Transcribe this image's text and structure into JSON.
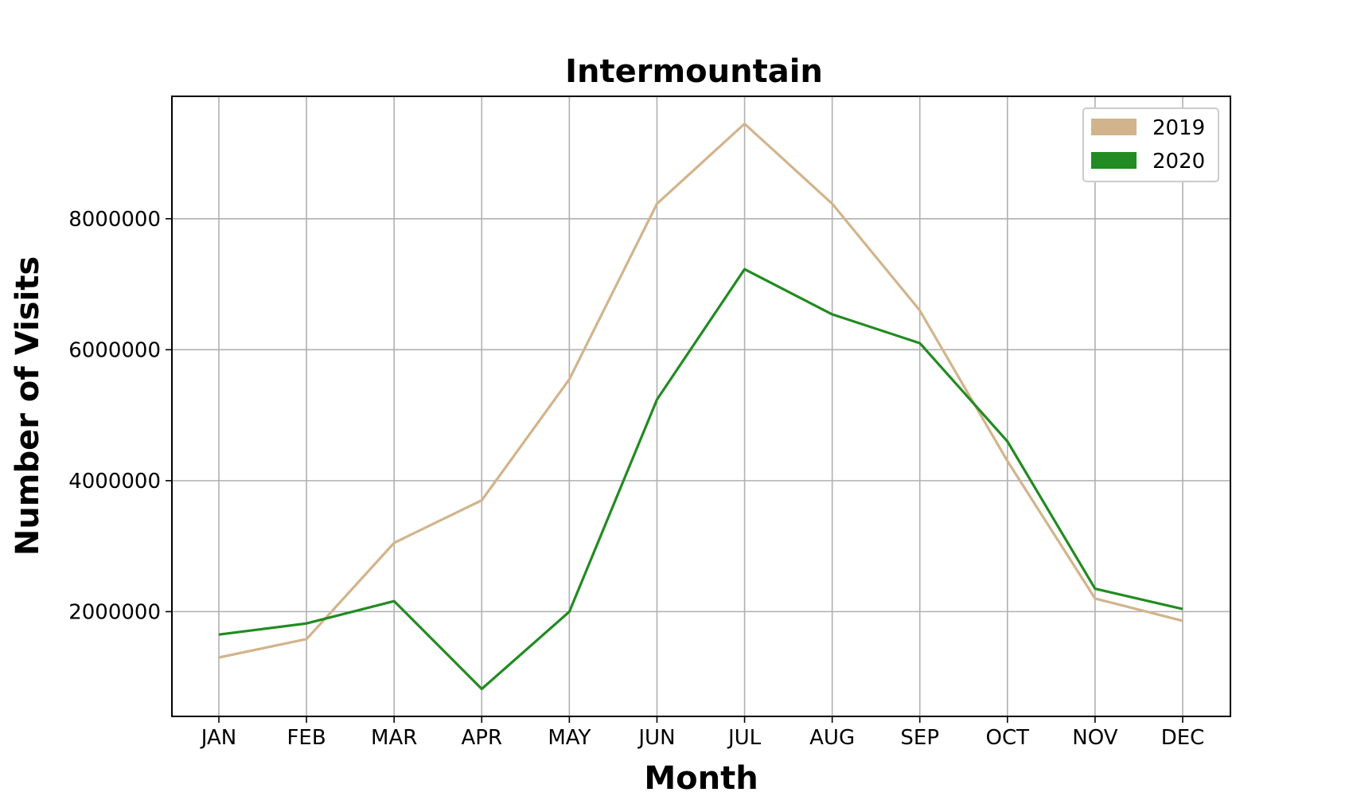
{
  "chart_data": {
    "type": "line",
    "title": "Intermountain",
    "xlabel": "Month",
    "ylabel": "Number of Visits",
    "categories": [
      "JAN",
      "FEB",
      "MAR",
      "APR",
      "MAY",
      "JUN",
      "JUL",
      "AUG",
      "SEP",
      "OCT",
      "NOV",
      "DEC"
    ],
    "series": [
      {
        "name": "2019",
        "color": "#d2b48c",
        "values": [
          1300000,
          1580000,
          3050000,
          3700000,
          5550000,
          8230000,
          9450000,
          8230000,
          6600000,
          4300000,
          2200000,
          1860000
        ]
      },
      {
        "name": "2020",
        "color": "#228b22",
        "values": [
          1650000,
          1820000,
          2160000,
          820000,
          2000000,
          5240000,
          7230000,
          6540000,
          6100000,
          4600000,
          2350000,
          2040000
        ]
      }
    ],
    "yticks": [
      2000000,
      4000000,
      6000000,
      8000000
    ],
    "ytick_labels": [
      "2000000",
      "4000000",
      "6000000",
      "8000000"
    ],
    "ylim": [
      400000,
      9870000
    ],
    "grid": true,
    "legend_position": "top-right"
  }
}
